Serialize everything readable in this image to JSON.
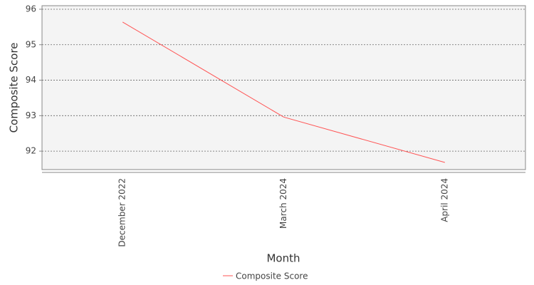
{
  "chart_data": {
    "type": "line",
    "x_label": "Month",
    "y_label": "Composite Score",
    "categories": [
      "December 2022",
      "March 2024",
      "April 2024"
    ],
    "series": [
      {
        "name": "Composite Score",
        "color": "#ff5555",
        "values": [
          95.64,
          92.96,
          91.68
        ]
      }
    ],
    "ylim": [
      91.48,
      96.1
    ],
    "yticks": [
      92,
      93,
      94,
      95,
      96
    ],
    "grid": true,
    "legend": "bottom"
  }
}
